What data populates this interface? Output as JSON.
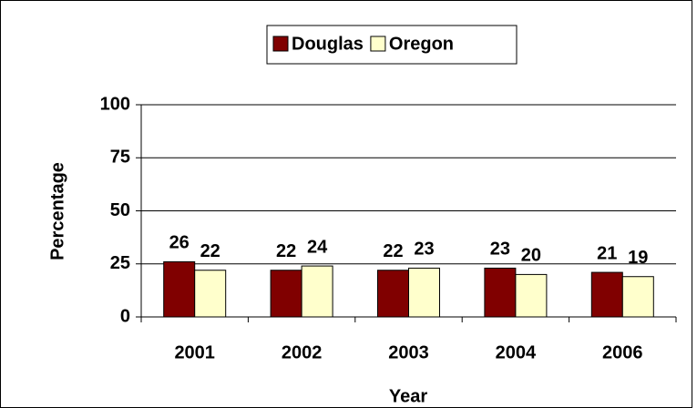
{
  "chart_data": {
    "type": "bar",
    "categories": [
      "2001",
      "2002",
      "2003",
      "2004",
      "2006"
    ],
    "series": [
      {
        "name": "Douglas",
        "color": "#800000",
        "values": [
          26,
          22,
          22,
          23,
          21
        ]
      },
      {
        "name": "Oregon",
        "color": "#ffffcc",
        "values": [
          22,
          24,
          23,
          20,
          19
        ]
      }
    ],
    "xlabel": "Year",
    "ylabel": "Percentage",
    "ylim": [
      0,
      100
    ],
    "yticks": [
      0,
      25,
      50,
      75,
      100
    ],
    "grid": true,
    "legend": "top"
  }
}
